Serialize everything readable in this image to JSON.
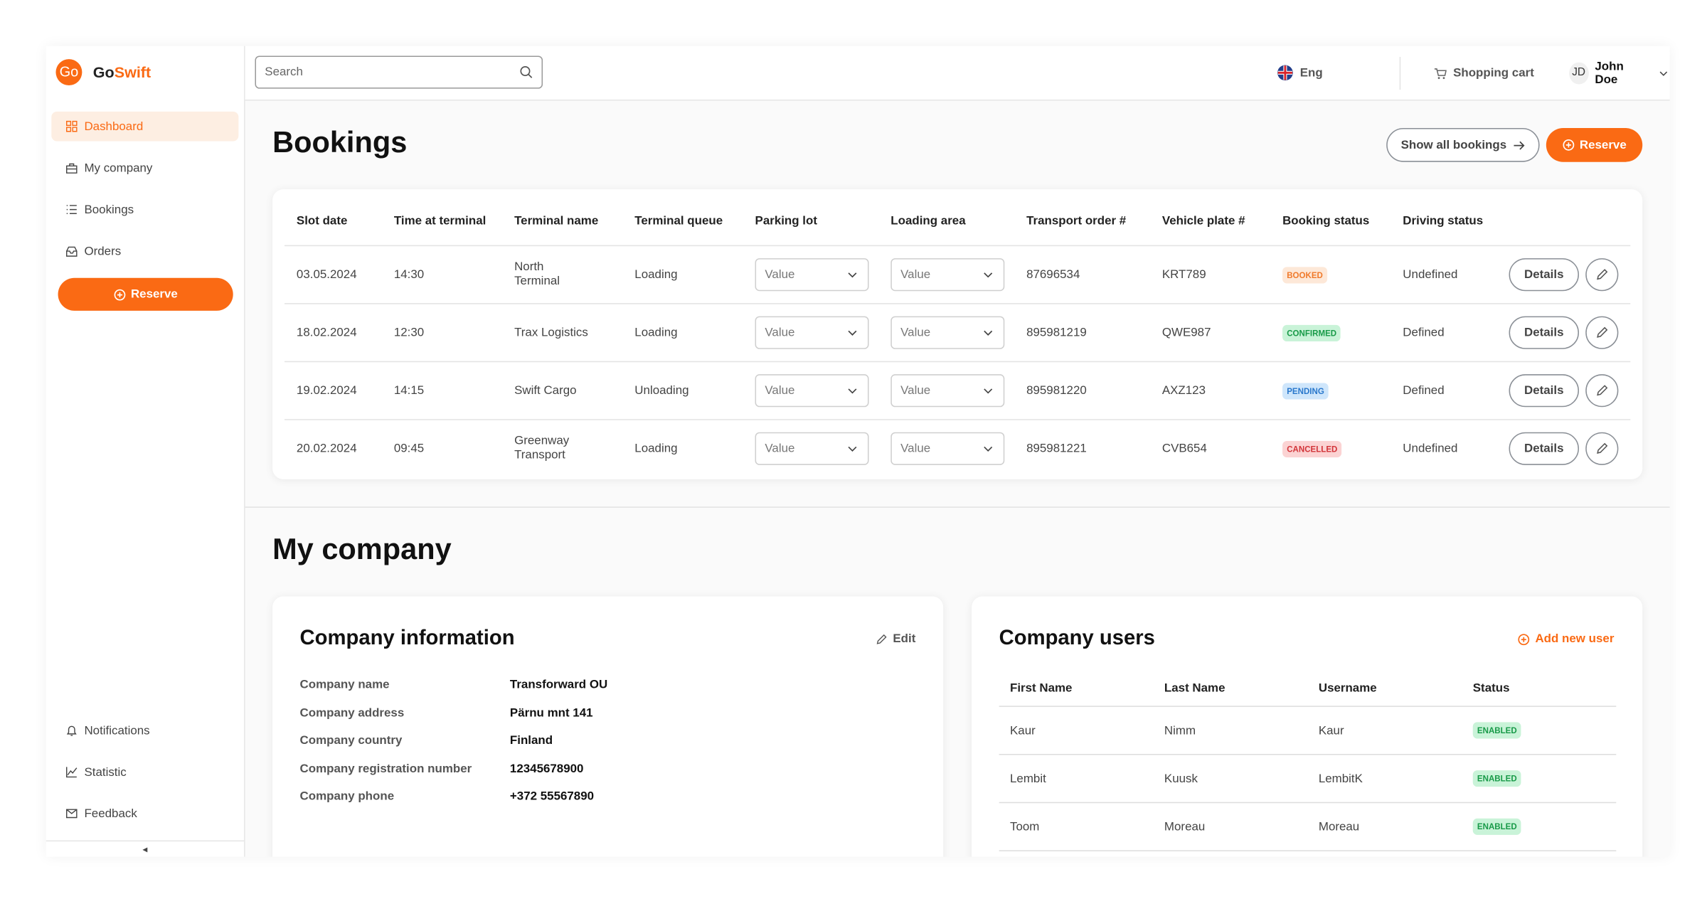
{
  "brand": {
    "logo": "Go",
    "name_first": "Go",
    "name_second": "Swift"
  },
  "sidebar": {
    "nav": [
      "Dashboard",
      "My company",
      "Bookings",
      "Orders"
    ],
    "reserve": "Reserve",
    "bottom_nav": [
      "Notifications",
      "Statistic",
      "Feedback"
    ],
    "collapse": "◂"
  },
  "topbar": {
    "search_placeholder": "Search",
    "language": "Eng",
    "cart": "Shopping cart",
    "initials": "JD",
    "user": "John Doe"
  },
  "bookings": {
    "title": "Bookings",
    "show_all": "Show all bookings",
    "reserve": "Reserve",
    "details_button": "Details",
    "columns": [
      "Slot date",
      "Time at terminal",
      "Terminal name",
      "Terminal queue",
      "Parking lot",
      "Loading area",
      "Transport order #",
      "Vehicle plate #",
      "Booking status",
      "Driving status"
    ],
    "rows": [
      [
        "03.05.2024",
        "14:30",
        "North Terminal",
        "Loading",
        "Value",
        "Value",
        "87696534",
        "KRT789",
        "BOOKED",
        "Undefined"
      ],
      [
        "18.02.2024",
        "12:30",
        "Trax Logistics",
        "Loading",
        "Value",
        "Value",
        "895981219",
        "QWE987",
        "CONFIRMED",
        "Defined"
      ],
      [
        "19.02.2024",
        "14:15",
        "Swift Cargo",
        "Unloading",
        "Value",
        "Value",
        "895981220",
        "AXZ123",
        "PENDING",
        "Defined"
      ],
      [
        "20.02.2024",
        "09:45",
        "Greenway Transport",
        "Loading",
        "Value",
        "Value",
        "895981221",
        "CVB654",
        "CANCELLED",
        "Undefined"
      ]
    ]
  },
  "company": {
    "title": "My company",
    "info": {
      "title": "Company information",
      "edit": "Edit",
      "fields": [
        [
          "Company name",
          "Transforward OU"
        ],
        [
          "Company address",
          "Pärnu mnt 141"
        ],
        [
          "Company country",
          "Finland"
        ],
        [
          "Company registration number",
          "12345678900"
        ],
        [
          "Company phone",
          "+372 55567890"
        ]
      ]
    },
    "users": {
      "title": "Company users",
      "add": "Add new user",
      "columns": [
        "First Name",
        "Last Name",
        "Username",
        "Status"
      ],
      "rows": [
        [
          "Kaur",
          "Nimm",
          "Kaur",
          "ENABLED"
        ],
        [
          "Lembit",
          "Kuusk",
          "LembitK",
          "ENABLED"
        ],
        [
          "Toom",
          "Moreau",
          "Moreau",
          "ENABLED"
        ]
      ]
    }
  }
}
